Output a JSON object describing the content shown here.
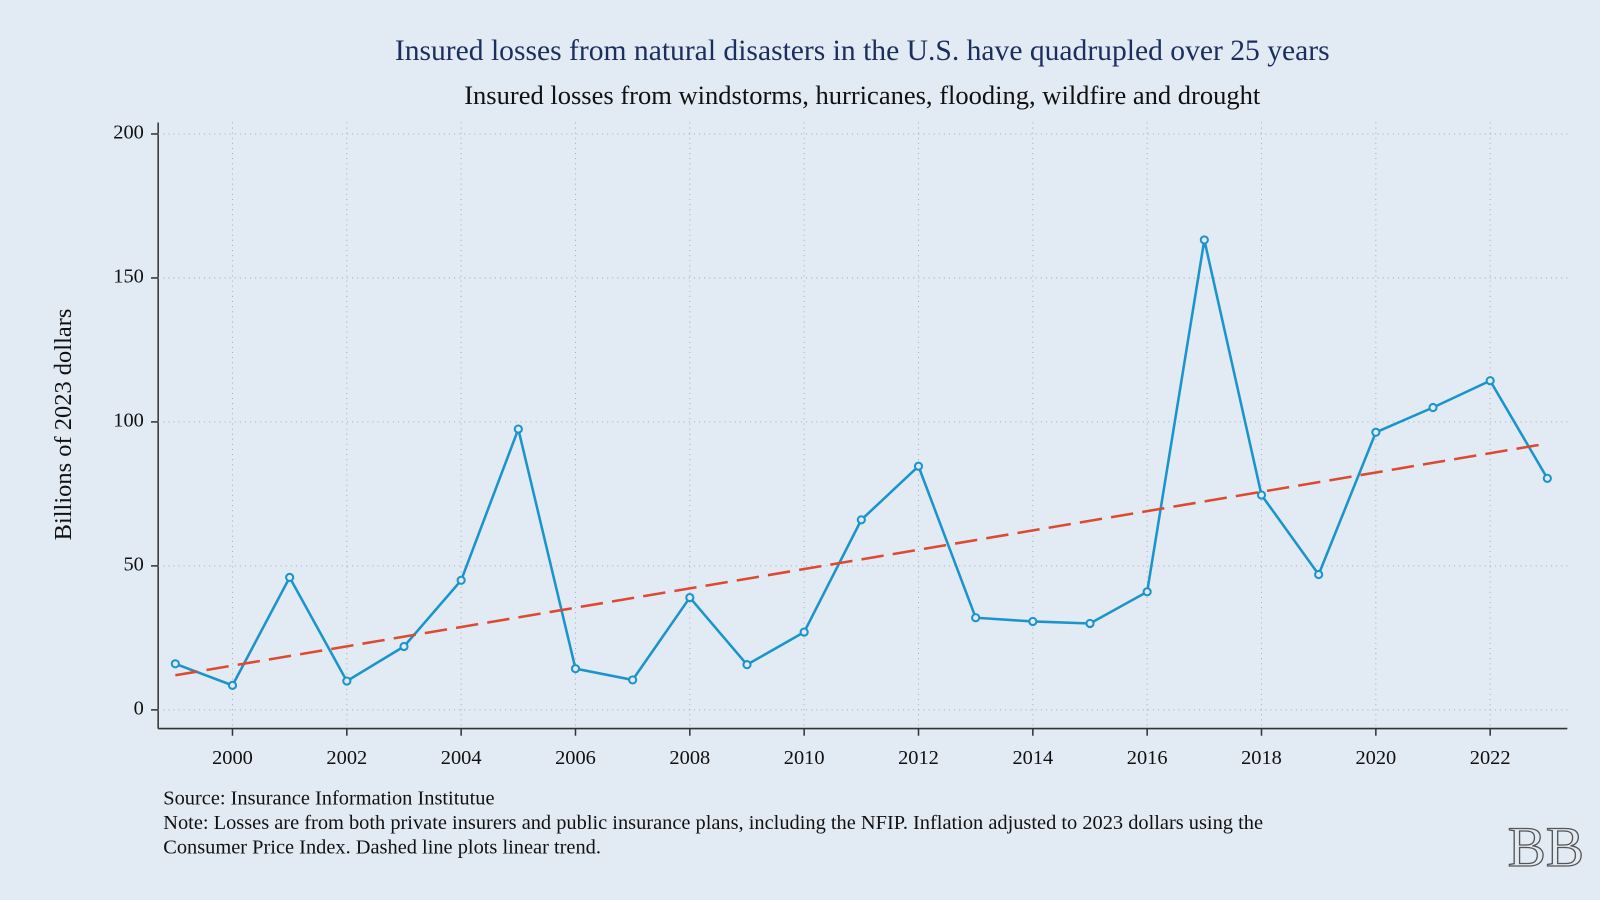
{
  "chart_data": {
    "type": "line",
    "title": "Insured losses from natural disasters in the U.S. have quadrupled over 25 years",
    "subtitle": "Insured losses from windstorms, hurricanes, flooding, wildfire and drought",
    "y_label": "Billions of 2023 dollars",
    "x": [
      1999,
      2000,
      2001,
      2002,
      2003,
      2004,
      2005,
      2006,
      2007,
      2008,
      2009,
      2010,
      2011,
      2012,
      2013,
      2014,
      2015,
      2016,
      2017,
      2018,
      2019,
      2020,
      2021,
      2022,
      2023
    ],
    "series": [
      {
        "color": "#1b94cc",
        "markers": true,
        "dashed": false,
        "values": [
          16,
          8.5,
          46,
          10,
          22,
          45,
          97.5,
          14.3,
          10.4,
          39,
          15.7,
          27,
          66,
          84.6,
          32,
          30.7,
          30,
          41,
          163.2,
          74.6,
          47,
          96.4,
          105,
          114.3,
          80.4
        ]
      },
      {
        "color": "#dc4a32",
        "markers": false,
        "dashed": true,
        "x": [
          1999,
          2023
        ],
        "values": [
          12,
          92.5
        ]
      }
    ],
    "xlim": [
      1998.7,
      2023.35
    ],
    "ylim": [
      -6.5,
      204
    ],
    "xticks": [
      2000,
      2002,
      2004,
      2006,
      2008,
      2010,
      2012,
      2014,
      2016,
      2018,
      2020,
      2022
    ],
    "yticks": [
      0,
      50,
      100,
      150,
      200
    ],
    "grid": true,
    "source": "Source: Insurance Information Institutue",
    "note": [
      "Note: Losses are from both private insurers and public insurance plans, including the NFIP. Inflation adjusted to 2023 dollars using the",
      "Consumer Price Index. Dashed line plots linear trend."
    ],
    "logo": "BB"
  }
}
